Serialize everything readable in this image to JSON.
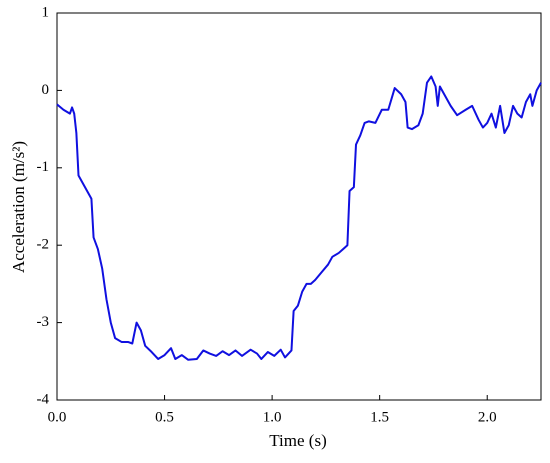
{
  "chart_data": {
    "type": "line",
    "xlabel": "Time (s)",
    "ylabel": "Acceleration (m/s²)",
    "xlim": [
      0,
      2.25
    ],
    "ylim": [
      -4,
      1
    ],
    "xticks": [
      {
        "value": 0,
        "label": "0.0"
      },
      0.5,
      {
        "value": 1,
        "label": "1.0"
      },
      1.5,
      {
        "value": 2,
        "label": "2.0"
      }
    ],
    "yticks": [
      -4,
      -3,
      -2,
      -1,
      0,
      1
    ],
    "series": [
      {
        "color": "#1010e0",
        "x": [
          0,
          0.03,
          0.06,
          0.07,
          0.08,
          0.09,
          0.1,
          0.12,
          0.15,
          0.16,
          0.17,
          0.19,
          0.21,
          0.23,
          0.25,
          0.27,
          0.3,
          0.33,
          0.35,
          0.37,
          0.39,
          0.41,
          0.44,
          0.47,
          0.5,
          0.53,
          0.55,
          0.58,
          0.61,
          0.65,
          0.68,
          0.71,
          0.74,
          0.77,
          0.8,
          0.83,
          0.86,
          0.9,
          0.93,
          0.95,
          0.98,
          1.01,
          1.04,
          1.06,
          1.09,
          1.1,
          1.12,
          1.14,
          1.16,
          1.18,
          1.2,
          1.23,
          1.26,
          1.28,
          1.31,
          1.33,
          1.35,
          1.36,
          1.38,
          1.39,
          1.41,
          1.43,
          1.45,
          1.48,
          1.51,
          1.54,
          1.57,
          1.6,
          1.62,
          1.63,
          1.65,
          1.68,
          1.7,
          1.72,
          1.74,
          1.76,
          1.77,
          1.78,
          1.8,
          1.83,
          1.86,
          1.9,
          1.93,
          1.96,
          1.98,
          2.0,
          2.02,
          2.04,
          2.06,
          2.08,
          2.1,
          2.12,
          2.14,
          2.16,
          2.18,
          2.2,
          2.21,
          2.23,
          2.25
        ],
        "values": [
          -0.18,
          -0.25,
          -0.3,
          -0.22,
          -0.3,
          -0.55,
          -1.1,
          -1.2,
          -1.35,
          -1.4,
          -1.9,
          -2.05,
          -2.3,
          -2.7,
          -3.0,
          -3.2,
          -3.25,
          -3.25,
          -3.27,
          -3.0,
          -3.1,
          -3.3,
          -3.38,
          -3.47,
          -3.42,
          -3.33,
          -3.47,
          -3.42,
          -3.48,
          -3.47,
          -3.36,
          -3.4,
          -3.43,
          -3.37,
          -3.42,
          -3.36,
          -3.43,
          -3.35,
          -3.4,
          -3.47,
          -3.38,
          -3.43,
          -3.35,
          -3.45,
          -3.36,
          -2.85,
          -2.78,
          -2.6,
          -2.5,
          -2.5,
          -2.45,
          -2.35,
          -2.25,
          -2.15,
          -2.1,
          -2.05,
          -2.0,
          -1.3,
          -1.25,
          -0.7,
          -0.58,
          -0.42,
          -0.4,
          -0.42,
          -0.25,
          -0.25,
          0.03,
          -0.05,
          -0.15,
          -0.48,
          -0.5,
          -0.45,
          -0.3,
          0.1,
          0.18,
          0.05,
          -0.2,
          0.05,
          -0.05,
          -0.2,
          -0.32,
          -0.25,
          -0.2,
          -0.38,
          -0.48,
          -0.42,
          -0.3,
          -0.48,
          -0.2,
          -0.55,
          -0.45,
          -0.2,
          -0.3,
          -0.35,
          -0.15,
          -0.05,
          -0.2,
          0.0,
          0.1
        ]
      }
    ]
  }
}
